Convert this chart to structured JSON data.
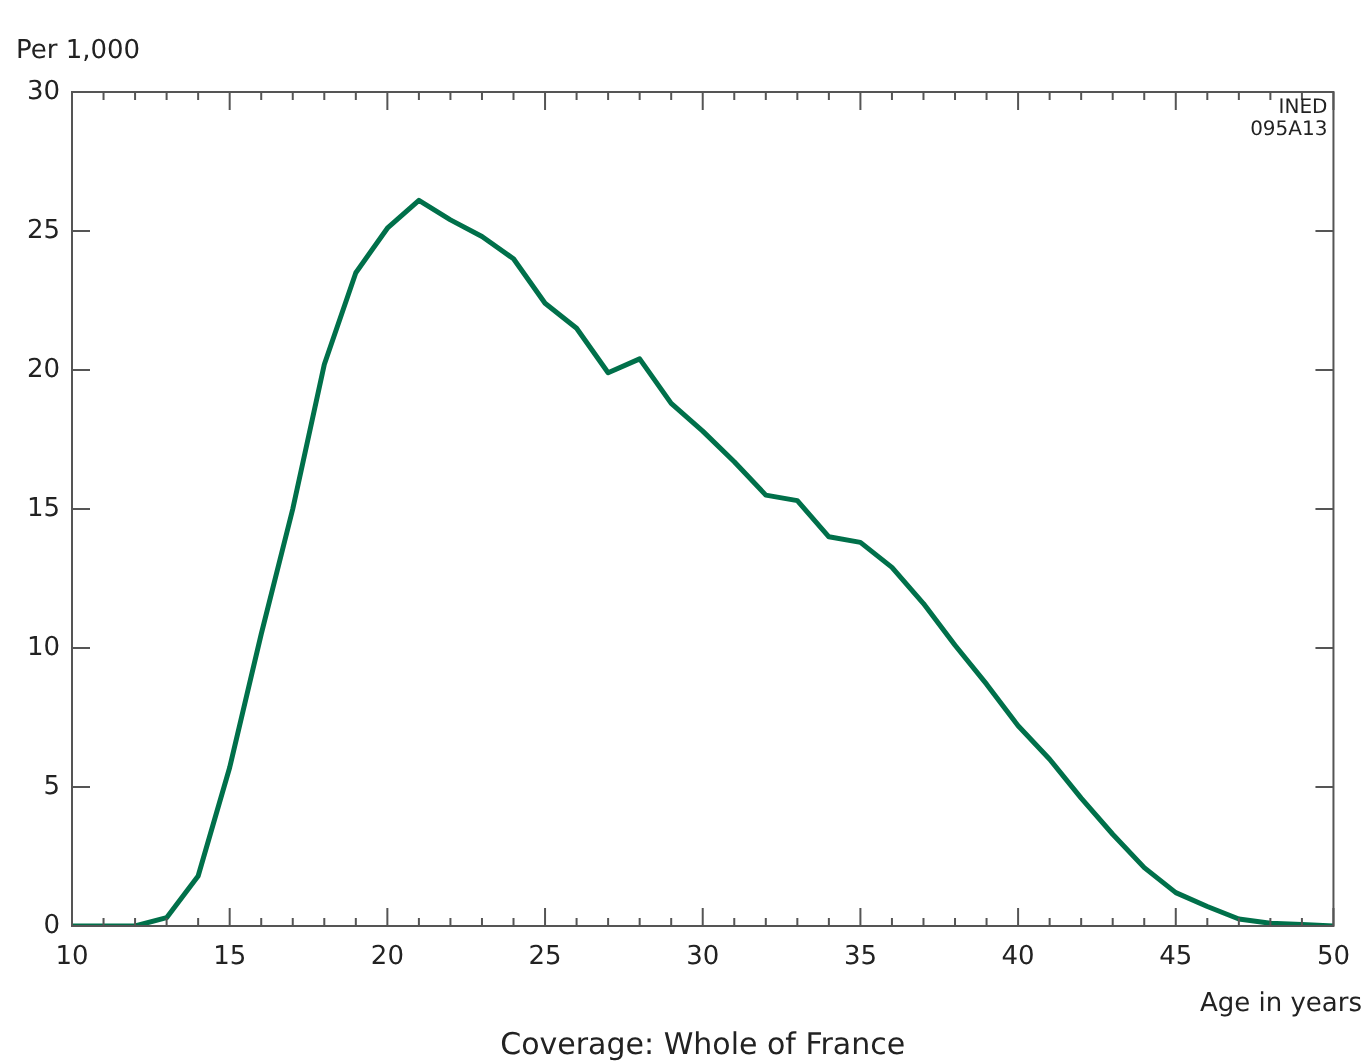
{
  "chart_data": {
    "type": "line",
    "ylabel": "Per 1,000",
    "xlabel": "Age in years",
    "annotations": [
      "INED\n095A13",
      "Coverage: Whole of France"
    ],
    "x": [
      10,
      11,
      12,
      13,
      14,
      15,
      16,
      17,
      18,
      19,
      20,
      21,
      22,
      23,
      24,
      25,
      26,
      27,
      28,
      29,
      30,
      31,
      32,
      33,
      34,
      35,
      36,
      37,
      38,
      39,
      40,
      41,
      42,
      43,
      44,
      45,
      46,
      47,
      48,
      49,
      50
    ],
    "series": [
      {
        "color": "#00704a",
        "values": [
          0,
          0,
          0,
          0.3,
          1.8,
          5.7,
          10.5,
          15,
          20.2,
          23.5,
          25.1,
          26.1,
          25.4,
          24.8,
          24,
          22.4,
          21.5,
          19.9,
          20.4,
          18.8,
          17.8,
          16.7,
          15.5,
          15.3,
          14,
          13.8,
          12.9,
          11.6,
          10.1,
          8.7,
          7.2,
          6,
          4.6,
          3.3,
          2.1,
          1.2,
          0.7,
          0.25,
          0.1,
          0.05,
          0
        ]
      }
    ],
    "xlim": [
      10,
      50
    ],
    "xticks": [
      10,
      {
        "value": 11,
        "label": null
      },
      {
        "value": 12,
        "label": null
      },
      {
        "value": 13,
        "label": null
      },
      {
        "value": 14,
        "label": null
      },
      15,
      {
        "value": 16,
        "label": null
      },
      {
        "value": 17,
        "label": null
      },
      {
        "value": 18,
        "label": null
      },
      {
        "value": 19,
        "label": null
      },
      20,
      {
        "value": 21,
        "label": null
      },
      {
        "value": 22,
        "label": null
      },
      {
        "value": 23,
        "label": null
      },
      {
        "value": 24,
        "label": null
      },
      25,
      {
        "value": 26,
        "label": null
      },
      {
        "value": 27,
        "label": null
      },
      {
        "value": 28,
        "label": null
      },
      {
        "value": 29,
        "label": null
      },
      30,
      {
        "value": 31,
        "label": null
      },
      {
        "value": 32,
        "label": null
      },
      {
        "value": 33,
        "label": null
      },
      {
        "value": 34,
        "label": null
      },
      35,
      {
        "value": 36,
        "label": null
      },
      {
        "value": 37,
        "label": null
      },
      {
        "value": 38,
        "label": null
      },
      {
        "value": 39,
        "label": null
      },
      40,
      {
        "value": 41,
        "label": null
      },
      {
        "value": 42,
        "label": null
      },
      {
        "value": 43,
        "label": null
      },
      {
        "value": 44,
        "label": null
      },
      45,
      {
        "value": 46,
        "label": null
      },
      {
        "value": 47,
        "label": null
      },
      {
        "value": 48,
        "label": null
      },
      {
        "value": 49,
        "label": null
      },
      50
    ],
    "ylim": [
      0,
      30
    ],
    "yticks": [
      0,
      5,
      10,
      15,
      20,
      25,
      30
    ],
    "grid": false,
    "legend": false,
    "marker": "none",
    "line_style": "solid"
  }
}
